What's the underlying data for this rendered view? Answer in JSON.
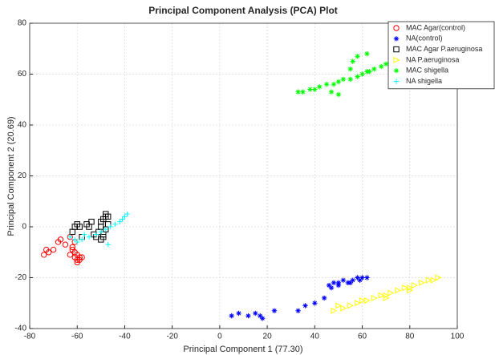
{
  "chart_data": {
    "type": "scatter",
    "title": "Principal Component Analysis (PCA) Plot",
    "x_label": "Principal Component 1 (77.30)",
    "y_label": "Principal Component 2 (20.69)",
    "xlim": [
      -80,
      100
    ],
    "ylim": [
      -40,
      80
    ],
    "xticks": [
      -80,
      -60,
      -40,
      -20,
      0,
      20,
      40,
      60,
      80,
      100
    ],
    "yticks": [
      -40,
      -20,
      0,
      20,
      40,
      60,
      80
    ],
    "grid": true,
    "legend": "top-right",
    "series": [
      {
        "name": "MAC Agar(control)",
        "color": "#ff0000",
        "marker": "circle",
        "x": [
          -74,
          -73,
          -72,
          -70,
          -68,
          -67,
          -65,
          -63,
          -62,
          -61,
          -61,
          -60,
          -60,
          -59,
          -58,
          -62,
          -61,
          -60,
          -63,
          -59
        ],
        "values": [
          -11,
          -9,
          -10,
          -9,
          -6,
          -5,
          -7,
          -4,
          -8,
          -10,
          -12,
          -11,
          -13,
          -12,
          -12,
          -9,
          -6,
          -14,
          -11,
          -13
        ]
      },
      {
        "name": "NA(control)",
        "color": "#0000ff",
        "marker": "asterisk",
        "x": [
          5,
          8,
          12,
          15,
          17,
          18,
          23,
          33,
          36,
          40,
          44,
          46,
          48,
          50,
          52,
          54,
          56,
          58,
          60,
          62,
          47,
          50,
          55,
          59
        ],
        "values": [
          -35,
          -34,
          -35,
          -34,
          -35,
          -36,
          -33,
          -33,
          -31,
          -30,
          -28,
          -23,
          -22,
          -22,
          -21,
          -22,
          -21,
          -20,
          -20,
          -20,
          -24,
          -23,
          -22,
          -21
        ]
      },
      {
        "name": "MAC Agar P.aeruginosa",
        "color": "#000000",
        "marker": "square",
        "x": [
          -62,
          -60,
          -59,
          -56,
          -55,
          -53,
          -52,
          -51,
          -50,
          -50,
          -49,
          -49,
          -48,
          -48,
          -47,
          -47,
          -48,
          -49,
          -50,
          -58,
          -61,
          -54
        ],
        "values": [
          -2,
          1,
          0,
          1,
          0,
          -3,
          -4,
          -2,
          0,
          2,
          3,
          -4,
          4,
          5,
          4,
          1,
          -1,
          -3,
          -5,
          -4,
          0,
          2
        ]
      },
      {
        "name": "NA P.aeruginosa",
        "color": "#ffff00",
        "marker": "triangle",
        "x": [
          48,
          52,
          55,
          58,
          62,
          65,
          68,
          70,
          72,
          75,
          78,
          80,
          82,
          85,
          88,
          90,
          92,
          50,
          60,
          70,
          80
        ],
        "values": [
          -33,
          -32,
          -31,
          -30,
          -29,
          -28,
          -27,
          -27,
          -26,
          -25,
          -24,
          -24,
          -23,
          -22,
          -21,
          -21,
          -20,
          -31,
          -29,
          -28,
          -25
        ]
      },
      {
        "name": "MAC shigella",
        "color": "#00ff00",
        "marker": "asterisk",
        "x": [
          33,
          35,
          38,
          40,
          42,
          45,
          48,
          50,
          52,
          55,
          58,
          60,
          62,
          65,
          68,
          70,
          56,
          58,
          62,
          63,
          55,
          50,
          47
        ],
        "values": [
          53,
          53,
          54,
          54,
          55,
          56,
          56,
          57,
          58,
          58,
          59,
          60,
          61,
          62,
          63,
          64,
          65,
          67,
          68,
          61,
          62,
          52,
          53
        ]
      },
      {
        "name": "NA shigella",
        "color": "#00ffff",
        "marker": "plus",
        "x": [
          -63,
          -60,
          -58,
          -57,
          -55,
          -52,
          -50,
          -48,
          -46,
          -44,
          -42,
          -41,
          -40,
          -39,
          -47,
          -61
        ],
        "values": [
          -4,
          -6,
          -5,
          -3,
          -4,
          -3,
          -2,
          -1,
          0,
          1,
          2,
          3,
          4,
          5,
          -7,
          -5
        ]
      }
    ]
  }
}
